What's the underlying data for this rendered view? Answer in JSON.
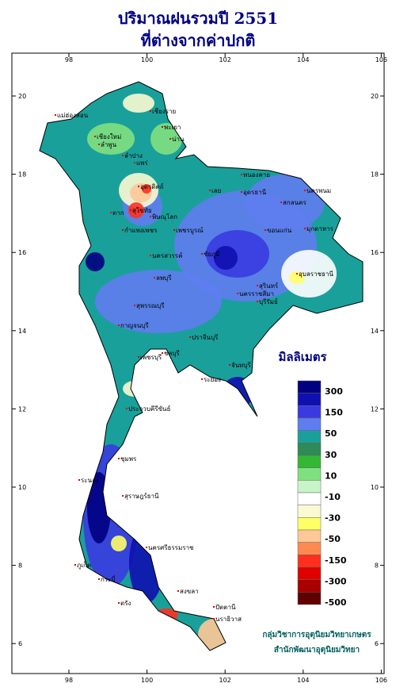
{
  "header": {
    "title": "ปริมาณฝนรวมปี 2551",
    "subtitle": "ที่ต่างจากค่าปกติ"
  },
  "axes": {
    "lon_ticks": [
      98,
      100,
      102,
      104,
      106
    ],
    "lat_ticks": [
      20,
      18,
      16,
      14,
      12,
      10,
      8,
      6
    ]
  },
  "legend": {
    "title": "มิลลิเมตร",
    "colors": [
      "#000080",
      "#1010b0",
      "#3a3ae0",
      "#5f7cf0",
      "#1aa09a",
      "#2e8b57",
      "#33b833",
      "#7fe07f",
      "#c8f5c8",
      "#ffffff",
      "#fafad2",
      "#ffff66",
      "#ffc896",
      "#ff8a50",
      "#ff3020",
      "#e00000",
      "#a80000",
      "#600000"
    ],
    "levels": [
      300,
      150,
      50,
      30,
      10,
      -10,
      -30,
      -50,
      -150,
      -300,
      -500
    ]
  },
  "credits": [
    "กลุ่มวิชาการอุตุนิยมวิทยาเกษตร",
    "สำนักพัฒนาอุตุนิยมวิทยา"
  ],
  "places": [
    "เชียงราย",
    "แม่ฮ่องสอน",
    "เชียงใหม่",
    "ลำพูน",
    "ลำปาง",
    "พะเยา",
    "น่าน",
    "แพร่",
    "อุตรดิตถ์",
    "ตาก",
    "สุโขทัย",
    "พิษณุโลก",
    "กำแพงเพชร",
    "เพชรบูรณ์",
    "เลย",
    "หนองคาย",
    "อุดรธานี",
    "สกลนคร",
    "นครพนม",
    "มุกดาหาร",
    "ขอนแก่น",
    "ชัยภูมิ",
    "นครสวรรค์",
    "นครราชสีมา",
    "บุรีรัมย์",
    "สุรินทร์",
    "อุบลราชธานี",
    "ลพบุรี",
    "สุพรรณบุรี",
    "กาญจนบุรี",
    "ปราจีนบุรี",
    "ชลบุรี",
    "ระยอง",
    "จันทบุรี",
    "เพชรบุรี",
    "ประจวบคีรีขันธ์",
    "ชุมพร",
    "ระนอง",
    "สุราษฎร์ธานี",
    "นครศรีธรรมราช",
    "ภูเก็ต",
    "กระบี่",
    "ตรัง",
    "สงขลา",
    "ปัตตานี",
    "นราธิวาส"
  ]
}
